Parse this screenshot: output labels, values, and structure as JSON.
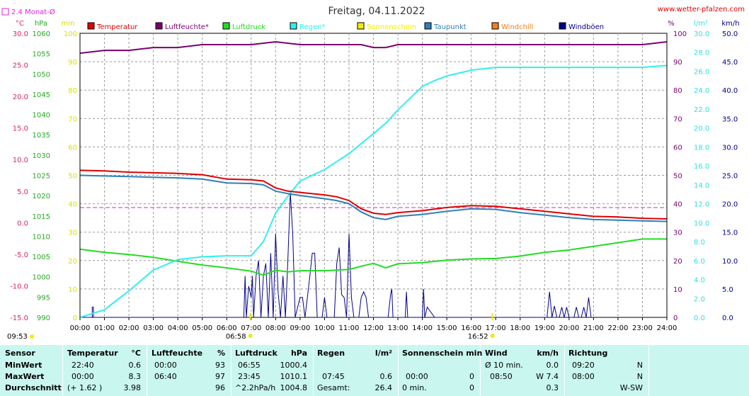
{
  "title": "Freitag, 04.11.2022",
  "site_link": "www.wetter-pfalzen.com",
  "avg_label": "2.4 Monat-Ø",
  "colors": {
    "temperature": "#e00000",
    "humidity": "#7a0070",
    "pressure": "#22dd22",
    "rain": "#33eeee",
    "sunshine": "#eeee00",
    "dewpoint": "#2f80b8",
    "windchill": "#f08020",
    "gusts": "#000088",
    "avg_line": "#dd22dd"
  },
  "legend": [
    {
      "label": "Temperatur",
      "color": "#e00000"
    },
    {
      "label": "Luftfeuchte*",
      "color": "#7a0070"
    },
    {
      "label": "Luftdruck",
      "color": "#22dd22"
    },
    {
      "label": "Regen*",
      "color": "#33eeee"
    },
    {
      "label": "Sonnenschein",
      "color": "#eeee00"
    },
    {
      "label": "Taupunkt",
      "color": "#2f80b8"
    },
    {
      "label": "Windchill",
      "color": "#f08020"
    },
    {
      "label": "Windböen",
      "color": "#000088"
    }
  ],
  "axes": {
    "temp": {
      "unit": "°C",
      "ticks": [
        "30.0",
        "25.0",
        "20.0",
        "15.0",
        "10.0",
        "5.0",
        "0.0",
        "-5.0",
        "-10.0",
        "-15.0"
      ]
    },
    "pressure": {
      "unit": "hPa",
      "ticks": [
        "1060",
        "1055",
        "1050",
        "1045",
        "1040",
        "1035",
        "1030",
        "1025",
        "1020",
        "1015",
        "1010",
        "1005",
        "1000",
        "995",
        "990"
      ]
    },
    "minutes": {
      "unit": "min",
      "ticks": [
        "100",
        "90",
        "80",
        "70",
        "60",
        "50",
        "40",
        "30",
        "20",
        "10",
        "0"
      ]
    },
    "percent": {
      "unit": "%",
      "ticks": [
        "100",
        "90",
        "80",
        "70",
        "60",
        "50",
        "40",
        "30",
        "20",
        "10",
        "0"
      ]
    },
    "rain": {
      "unit": "l/m²",
      "ticks": [
        "30.0",
        "28.0",
        "26.0",
        "24.0",
        "22.0",
        "20.0",
        "18.0",
        "16.0",
        "14.0",
        "12.0",
        "10.0",
        "8.0",
        "6.0",
        "4.0",
        "2.0",
        "0.0"
      ]
    },
    "wind": {
      "unit": "km/h",
      "ticks": [
        "50.0",
        "45.0",
        "40.0",
        "35.0",
        "30.0",
        "25.0",
        "20.0",
        "15.0",
        "10.0",
        "5.0",
        "0.0"
      ]
    },
    "time": {
      "ticks": [
        "00:00",
        "01:00",
        "02:00",
        "03:00",
        "04:00",
        "05:00",
        "06:00",
        "07:00",
        "08:00",
        "09:00",
        "10:00",
        "11:00",
        "12:00",
        "13:00",
        "14:00",
        "15:00",
        "16:00",
        "17:00",
        "18:00",
        "19:00",
        "20:00",
        "21:00",
        "22:00",
        "23:00",
        "24:00"
      ]
    }
  },
  "sun_markers": [
    {
      "label": "09:53",
      "side": "left"
    },
    {
      "label": "06:58",
      "hour": 6.967
    },
    {
      "label": "16:52",
      "hour": 16.867
    }
  ],
  "chart_data": {
    "type": "line",
    "title": "Freitag, 04.11.2022",
    "x_unit": "hours",
    "xlim": [
      0,
      24
    ],
    "avg_temp": 2.4,
    "series": [
      {
        "name": "Temperatur",
        "axis": "temp",
        "ylim": [
          -15,
          30
        ],
        "x": [
          0,
          1,
          2,
          3,
          4,
          5,
          6,
          7,
          7.5,
          8,
          8.5,
          9,
          10,
          10.5,
          11,
          11.5,
          12,
          12.5,
          13,
          14,
          15,
          16,
          17,
          18,
          19,
          20,
          21,
          22,
          23,
          24
        ],
        "values": [
          8.3,
          8.2,
          8.0,
          7.9,
          7.8,
          7.6,
          6.9,
          6.8,
          6.6,
          5.5,
          5.0,
          4.8,
          4.4,
          4.1,
          3.5,
          2.2,
          1.5,
          1.3,
          1.6,
          1.9,
          2.4,
          2.7,
          2.6,
          2.2,
          1.8,
          1.4,
          1.0,
          0.9,
          0.7,
          0.6
        ]
      },
      {
        "name": "Luftfeuchte*",
        "axis": "percent",
        "ylim": [
          0,
          100
        ],
        "x": [
          0,
          1,
          2,
          3,
          4,
          5,
          6,
          7,
          8,
          9,
          10,
          11,
          11.5,
          12,
          12.5,
          13,
          14,
          15,
          16,
          17,
          18,
          19,
          20,
          21,
          22,
          23,
          24
        ],
        "values": [
          93,
          94,
          94,
          95,
          95,
          96,
          96,
          96,
          97,
          96,
          96,
          96,
          96,
          95,
          95,
          96,
          96,
          96,
          96,
          96,
          96,
          96,
          96,
          96,
          96,
          96,
          97
        ]
      },
      {
        "name": "Luftdruck",
        "axis": "pressure",
        "ylim": [
          990,
          1060
        ],
        "x": [
          0,
          1,
          2,
          3,
          4,
          5,
          6,
          7,
          7.5,
          8,
          8.5,
          9,
          10,
          11,
          11.5,
          12,
          12.5,
          13,
          14,
          15,
          16,
          17,
          18,
          19,
          20,
          21,
          22,
          23,
          24
        ],
        "values": [
          1006.8,
          1006.0,
          1005.5,
          1004.8,
          1003.8,
          1002.9,
          1002.2,
          1001.4,
          1000.4,
          1001.6,
          1001.2,
          1001.5,
          1001.5,
          1001.8,
          1002.6,
          1003.3,
          1002.2,
          1003.2,
          1003.5,
          1004.1,
          1004.4,
          1004.5,
          1005.1,
          1006.0,
          1006.6,
          1007.5,
          1008.4,
          1009.3,
          1009.3
        ]
      },
      {
        "name": "Regen*",
        "axis": "rain",
        "ylim": [
          0,
          30
        ],
        "x": [
          0,
          1,
          2,
          3,
          4,
          5,
          6,
          7,
          7.5,
          8,
          8.5,
          9,
          10,
          11,
          12,
          12.5,
          13,
          14,
          14.5,
          15,
          16,
          17,
          18,
          19,
          20,
          21,
          22,
          23,
          24
        ],
        "values": [
          0,
          0.8,
          2.8,
          5.0,
          6.1,
          6.4,
          6.5,
          6.5,
          8.0,
          11.0,
          12.8,
          14.4,
          15.6,
          17.3,
          19.4,
          20.5,
          21.9,
          24.4,
          25.0,
          25.5,
          26.1,
          26.4,
          26.4,
          26.4,
          26.4,
          26.4,
          26.4,
          26.4,
          26.6
        ]
      },
      {
        "name": "Taupunkt",
        "axis": "temp",
        "ylim": [
          -15,
          30
        ],
        "x": [
          0,
          1,
          2,
          3,
          4,
          5,
          6,
          7,
          7.5,
          8,
          8.5,
          9,
          10,
          10.5,
          11,
          11.5,
          12,
          12.5,
          13,
          14,
          15,
          16,
          17,
          18,
          19,
          20,
          21,
          22,
          23,
          24
        ],
        "values": [
          7.5,
          7.4,
          7.3,
          7.2,
          7.1,
          6.9,
          6.3,
          6.2,
          6.0,
          5.0,
          4.6,
          4.3,
          3.8,
          3.5,
          3.0,
          1.7,
          0.8,
          0.5,
          1.0,
          1.3,
          1.8,
          2.2,
          2.1,
          1.6,
          1.2,
          0.8,
          0.5,
          0.4,
          0.3,
          0.2
        ]
      },
      {
        "name": "Windböen",
        "axis": "wind",
        "ylim": [
          0,
          50
        ],
        "x": [
          0,
          0.5,
          0.5,
          0.55,
          0.55,
          1,
          6.7,
          6.75,
          6.8,
          6.9,
          7.0,
          7.05,
          7.1,
          7.2,
          7.3,
          7.4,
          7.5,
          7.6,
          7.7,
          7.8,
          7.9,
          8.0,
          8.1,
          8.2,
          8.3,
          8.4,
          8.5,
          8.6,
          8.7,
          8.8,
          8.9,
          9.0,
          9.1,
          9.2,
          9.3,
          9.4,
          9.5,
          9.6,
          9.7,
          9.8,
          9.9,
          10.0,
          10.1,
          10.2,
          10.3,
          10.4,
          10.5,
          10.6,
          10.7,
          10.8,
          10.9,
          11.0,
          11.1,
          11.2,
          11.3,
          11.4,
          11.5,
          11.6,
          11.7,
          11.8,
          11.9,
          12.0,
          12.6,
          12.7,
          12.75,
          12.8,
          12.9,
          13.0,
          13.3,
          13.35,
          13.4,
          13.5,
          13.9,
          14.0,
          14.05,
          14.1,
          14.2,
          14.5,
          15.3,
          15.35,
          15.4,
          16.5,
          16.55,
          16.6,
          16.7,
          18.7,
          18.8,
          18.9,
          19.0,
          19.1,
          19.2,
          19.3,
          19.4,
          19.5,
          19.6,
          19.7,
          19.8,
          19.9,
          20.0,
          20.1,
          20.2,
          20.3,
          20.4,
          20.5,
          20.6,
          20.7,
          20.8,
          20.9,
          21.0
        ],
        "values": [
          0,
          0,
          1.8,
          1.8,
          0,
          0,
          0,
          7.3,
          0,
          5.5,
          3.5,
          7.3,
          0,
          7.3,
          10.0,
          0,
          7.3,
          9.5,
          0,
          11.3,
          0,
          14.7,
          4.5,
          0,
          7.3,
          0,
          10.0,
          22.0,
          14.7,
          0,
          1.8,
          3.5,
          3.5,
          0,
          3.5,
          7.3,
          11.3,
          11.3,
          0,
          0,
          0,
          3.5,
          0,
          0,
          0,
          0,
          9.5,
          12.3,
          4.0,
          3.5,
          0,
          14.7,
          3.5,
          0,
          0,
          0,
          3.5,
          4.5,
          3.5,
          0,
          0,
          0,
          0,
          4.0,
          5.0,
          0,
          0,
          0,
          0,
          4.5,
          0,
          0,
          0,
          0,
          5.0,
          0,
          1.8,
          0,
          0,
          0,
          0,
          0,
          0,
          0,
          0,
          0,
          0,
          0,
          0,
          0,
          4.5,
          0,
          2.0,
          0,
          0,
          1.8,
          0,
          1.8,
          0,
          0,
          0,
          1.8,
          0,
          0,
          1.8,
          0,
          3.5,
          0,
          0
        ]
      }
    ]
  },
  "table": {
    "row_labels": [
      "Sensor",
      "MinWert",
      "MaxWert",
      "Durchschnitt"
    ],
    "temperatur": {
      "header": "Temperatur",
      "unit": "°C",
      "min_time": "22:40",
      "min_val": "0.6",
      "max_time": "00:00",
      "max_val": "8.3",
      "avg_note": "(+ 1.62 )",
      "avg_val": "3.98"
    },
    "luftfeuchte": {
      "header": "Luftfeuchte",
      "unit": "%",
      "min_time": "00:00",
      "min_val": "93",
      "max_time": "06:40",
      "max_val": "97",
      "avg_val": "96"
    },
    "luftdruck": {
      "header": "Luftdruck",
      "unit": "hPa",
      "min_time": "06:55",
      "min_val": "1000.4",
      "max_time": "23:45",
      "max_val": "1010.1",
      "avg_note": "^2.2hPa/h",
      "avg_val": "1004.8"
    },
    "regen": {
      "header": "Regen",
      "unit": "l/m²",
      "max_time": "07:45",
      "max_val": "0.6",
      "avg_note": "Gesamt:",
      "avg_val": "26.4"
    },
    "sonne": {
      "header": "Sonnenschein min",
      "max_time": "00:00",
      "max_val": "0",
      "avg_note": "0 min.",
      "avg_val": "0"
    },
    "wind": {
      "header": "Wind",
      "unit": "km/h",
      "min_note": "Ø 10 min.",
      "min_val": "0.0",
      "max_time": "08:50",
      "max_val": "W 7.4",
      "avg_val": "0.3"
    },
    "richtung": {
      "header": "Richtung",
      "min_time": "09:20",
      "min_val": "N",
      "max_time": "08:00",
      "max_val": "N",
      "avg_val": "W-SW"
    }
  }
}
